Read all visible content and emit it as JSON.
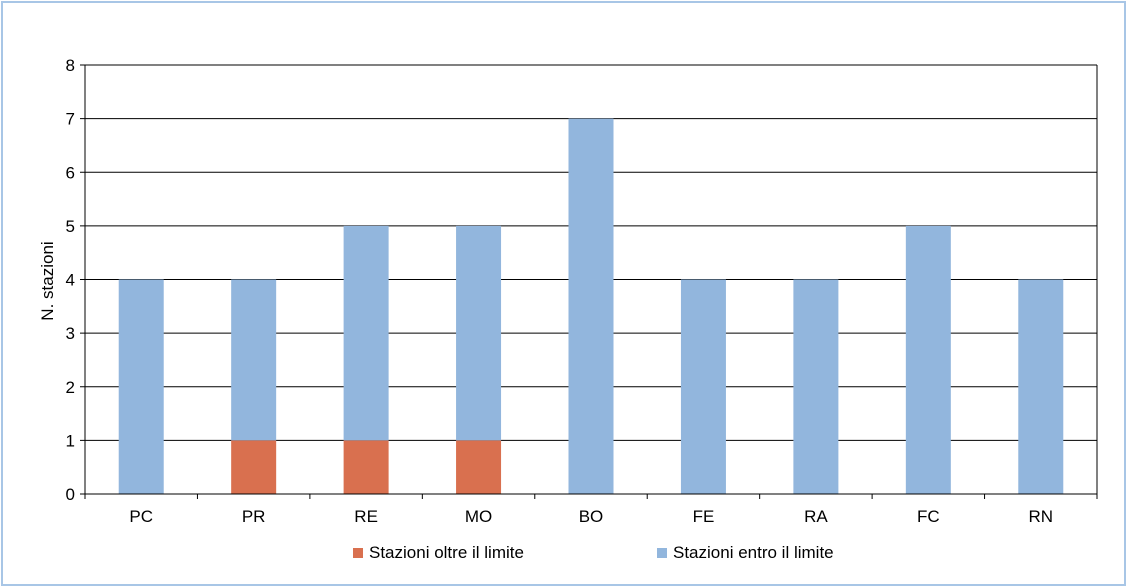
{
  "chart_data": {
    "type": "bar",
    "stacked": true,
    "categories": [
      "PC",
      "PR",
      "RE",
      "MO",
      "BO",
      "FE",
      "RA",
      "FC",
      "RN"
    ],
    "series": [
      {
        "name": "Stazioni oltre il limite",
        "color": "#d9704f",
        "values": [
          0,
          1,
          1,
          1,
          0,
          0,
          0,
          0,
          0
        ]
      },
      {
        "name": "Stazioni entro il limite",
        "color": "#92b6dd",
        "values": [
          4,
          3,
          4,
          4,
          7,
          4,
          4,
          5,
          4
        ]
      }
    ],
    "ylabel": "N. stazioni",
    "ylim": [
      0,
      8
    ],
    "yticks": [
      "0",
      "1",
      "2",
      "3",
      "4",
      "5",
      "6",
      "7",
      "8"
    ],
    "grid": true,
    "legend": "bottom"
  }
}
